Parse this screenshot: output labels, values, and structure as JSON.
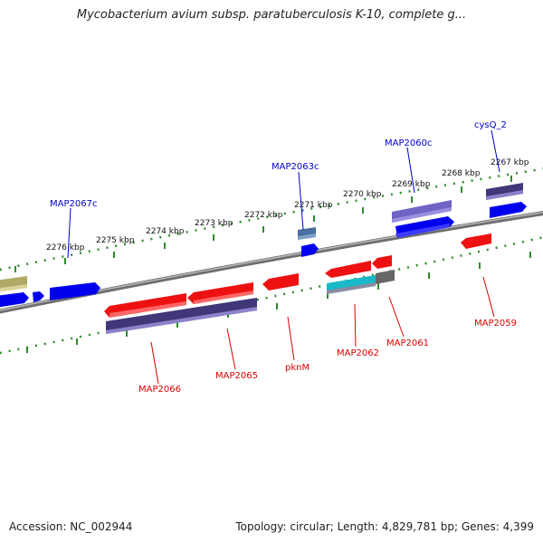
{
  "title": "Mycobacterium avium subsp. paratuberculosis K-10, complete g...",
  "footer": {
    "accession": "Accession: NC_002944",
    "summary": "Topology: circular; Length: 4,829,781 bp; Genes: 4,399"
  },
  "colors": {
    "backbone": "#7f7f7f",
    "ruler": "#2e8b2e",
    "forward_gene": "#0000ee",
    "reverse_gene": "#ee1111",
    "cds_purple": "#4b3f87",
    "label_forward": "#0000cc",
    "label_reverse": "#dd0000"
  },
  "ruler_ticks_kbp": [
    "2276 kbp",
    "2275 kbp",
    "2274 kbp",
    "2273 kbp",
    "2272 kbp",
    "2271 kbp",
    "2270 kbp",
    "2269 kbp",
    "2268 kbp",
    "2267 kbp"
  ],
  "forward_labels": [
    "MAP2067c",
    "MAP2063c",
    "MAP2060c",
    "cysQ_2"
  ],
  "reverse_labels": [
    "MAP2066",
    "MAP2065",
    "pknM",
    "MAP2062",
    "MAP2061",
    "MAP2059"
  ]
}
